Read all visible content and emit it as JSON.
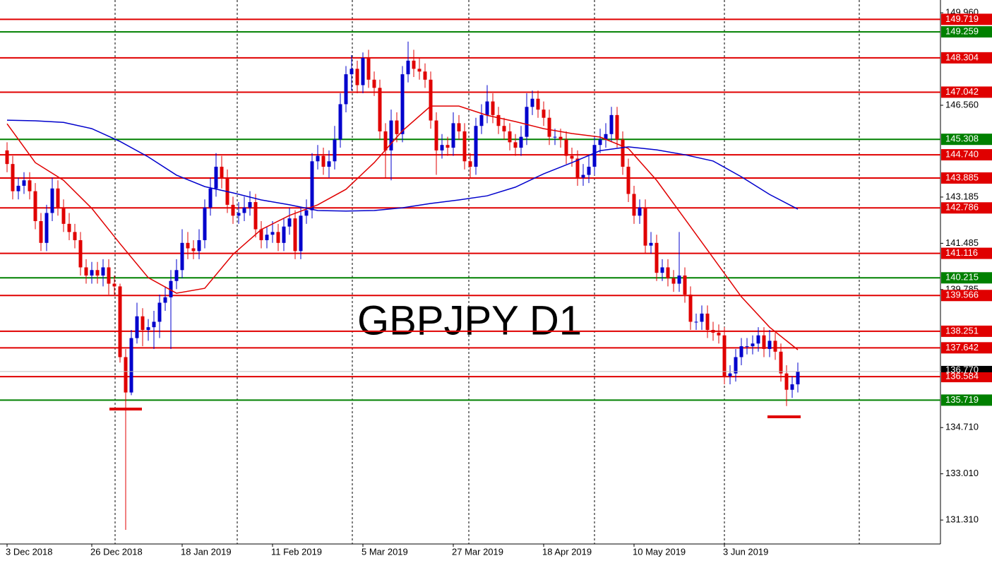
{
  "chart_data": {
    "type": "candlestick",
    "title": "GBPJPY D1",
    "up_color": "#0000cc",
    "down_color": "#e00000",
    "ylim": [
      130.43,
      150.43
    ],
    "yticks": [
      {
        "value": 149.96,
        "label": "149.960"
      },
      {
        "value": 146.56,
        "label": "146.560"
      },
      143.185,
      141.485,
      139.785,
      {
        "value": 134.71,
        "label": "134.710"
      },
      {
        "value": 133.01,
        "label": "133.010"
      },
      {
        "value": 131.31,
        "label": "131.310"
      }
    ],
    "current_price": {
      "value": 136.77,
      "label": "136.770"
    },
    "levels": [
      {
        "value": 149.719,
        "color": "#e00000"
      },
      {
        "value": 149.259,
        "color": "#008000"
      },
      {
        "value": 148.304,
        "color": "#e00000"
      },
      {
        "value": 147.042,
        "color": "#e00000"
      },
      {
        "value": 145.308,
        "color": "#008000"
      },
      {
        "value": 144.74,
        "label": "144.740",
        "color": "#e00000"
      },
      {
        "value": 143.885,
        "color": "#e00000"
      },
      {
        "value": 142.786,
        "color": "#e00000"
      },
      {
        "value": 141.116,
        "color": "#e00000"
      },
      {
        "value": 140.215,
        "color": "#008000"
      },
      {
        "value": 139.566,
        "color": "#e00000"
      },
      {
        "value": 138.251,
        "color": "#e00000"
      },
      {
        "value": 137.642,
        "color": "#e00000"
      },
      {
        "value": 136.584,
        "color": "#e00000"
      },
      {
        "value": 135.719,
        "color": "#008000"
      }
    ],
    "categories": [
      "3 Dec 2018",
      null,
      null,
      null,
      null,
      null,
      null,
      null,
      null,
      null,
      null,
      null,
      null,
      null,
      null,
      "26 Dec 2018",
      null,
      null,
      null,
      null,
      null,
      null,
      null,
      null,
      null,
      null,
      null,
      null,
      null,
      null,
      null,
      "18 Jan 2019",
      null,
      null,
      null,
      null,
      null,
      null,
      null,
      null,
      null,
      null,
      null,
      null,
      null,
      null,
      null,
      "11 Feb 2019",
      null,
      null,
      null,
      null,
      null,
      null,
      null,
      null,
      null,
      null,
      null,
      null,
      null,
      null,
      null,
      "5 Mar 2019",
      null,
      null,
      null,
      null,
      null,
      null,
      null,
      null,
      null,
      null,
      null,
      null,
      null,
      null,
      null,
      "27 Mar 2019",
      null,
      null,
      null,
      null,
      null,
      null,
      null,
      null,
      null,
      null,
      null,
      null,
      null,
      null,
      null,
      "18 Apr 2019",
      null,
      null,
      null,
      null,
      null,
      null,
      null,
      null,
      null,
      null,
      null,
      null,
      null,
      null,
      null,
      "10 May 2019",
      null,
      null,
      null,
      null,
      null,
      null,
      null,
      null,
      null,
      null,
      null,
      null,
      null,
      null,
      null,
      "3 Jun 2019",
      null,
      null,
      null,
      null,
      null,
      null,
      null,
      null,
      null,
      null,
      null,
      null,
      null
    ],
    "ohlc": [
      [
        144.9,
        145.2,
        144.1,
        144.4
      ],
      [
        144.4,
        144.7,
        143.1,
        143.4
      ],
      [
        143.4,
        143.9,
        143.1,
        143.6
      ],
      [
        143.6,
        144.1,
        143.3,
        143.8
      ],
      [
        143.8,
        144.1,
        143.1,
        143.4
      ],
      [
        143.4,
        143.7,
        142.0,
        142.3
      ],
      [
        142.3,
        142.6,
        141.2,
        141.5
      ],
      [
        141.5,
        142.9,
        141.2,
        142.6
      ],
      [
        142.6,
        143.9,
        142.3,
        143.5
      ],
      [
        143.5,
        143.8,
        142.5,
        142.8
      ],
      [
        142.8,
        143.1,
        141.9,
        142.2
      ],
      [
        142.2,
        142.6,
        141.6,
        141.9
      ],
      [
        141.9,
        142.2,
        141.3,
        141.6
      ],
      [
        141.6,
        141.9,
        140.3,
        140.6
      ],
      [
        140.6,
        140.9,
        140.0,
        140.3
      ],
      [
        140.3,
        140.8,
        140.0,
        140.5
      ],
      [
        140.5,
        140.8,
        140.0,
        140.3
      ],
      [
        140.3,
        140.9,
        139.9,
        140.6
      ],
      [
        140.6,
        140.9,
        139.6,
        140.0
      ],
      [
        140.0,
        140.3,
        139.6,
        139.9
      ],
      [
        139.9,
        140.0,
        137.1,
        137.3
      ],
      [
        137.3,
        137.6,
        130.95,
        136.0
      ],
      [
        136.0,
        138.3,
        135.9,
        138.0
      ],
      [
        138.0,
        139.3,
        137.8,
        138.8
      ],
      [
        138.8,
        139.1,
        137.7,
        138.3
      ],
      [
        138.3,
        138.7,
        137.9,
        138.4
      ],
      [
        138.4,
        139.0,
        137.6,
        138.6
      ],
      [
        138.6,
        139.6,
        138.0,
        139.3
      ],
      [
        139.3,
        139.9,
        139.0,
        139.5
      ],
      [
        139.5,
        140.5,
        137.6,
        140.1
      ],
      [
        140.1,
        140.9,
        139.8,
        140.5
      ],
      [
        140.5,
        142.0,
        140.2,
        141.5
      ],
      [
        141.5,
        141.9,
        140.9,
        141.3
      ],
      [
        141.3,
        141.6,
        140.9,
        141.2
      ],
      [
        141.2,
        142.0,
        140.9,
        141.6
      ],
      [
        141.6,
        143.1,
        141.3,
        142.8
      ],
      [
        142.8,
        143.9,
        142.5,
        143.5
      ],
      [
        143.5,
        144.8,
        143.2,
        144.3
      ],
      [
        144.3,
        144.7,
        143.5,
        143.9
      ],
      [
        143.9,
        144.2,
        142.6,
        142.9
      ],
      [
        142.9,
        143.2,
        142.2,
        142.5
      ],
      [
        142.5,
        143.0,
        142.2,
        142.6
      ],
      [
        142.6,
        143.2,
        142.3,
        142.8
      ],
      [
        142.8,
        143.4,
        142.5,
        143.0
      ],
      [
        143.0,
        143.3,
        141.7,
        142.0
      ],
      [
        142.0,
        142.3,
        141.3,
        141.6
      ],
      [
        141.6,
        142.1,
        141.3,
        141.8
      ],
      [
        141.8,
        142.3,
        141.5,
        141.9
      ],
      [
        141.9,
        142.2,
        141.2,
        141.5
      ],
      [
        141.5,
        142.4,
        141.2,
        142.1
      ],
      [
        142.1,
        142.8,
        141.8,
        142.4
      ],
      [
        142.4,
        142.7,
        140.9,
        141.2
      ],
      [
        141.2,
        142.8,
        140.9,
        142.5
      ],
      [
        142.5,
        143.1,
        142.2,
        142.7
      ],
      [
        142.7,
        144.8,
        142.4,
        144.5
      ],
      [
        144.5,
        145.1,
        144.2,
        144.7
      ],
      [
        144.7,
        145.0,
        144.0,
        144.3
      ],
      [
        144.3,
        144.9,
        143.9,
        144.5
      ],
      [
        144.5,
        145.8,
        144.2,
        145.3
      ],
      [
        145.3,
        147.0,
        145.0,
        146.6
      ],
      [
        146.6,
        148.0,
        146.3,
        147.7
      ],
      [
        147.7,
        148.4,
        147.1,
        147.9
      ],
      [
        147.9,
        148.2,
        147.0,
        147.3
      ],
      [
        147.3,
        148.5,
        147.0,
        148.3
      ],
      [
        148.3,
        148.6,
        147.2,
        147.5
      ],
      [
        147.5,
        147.8,
        146.9,
        147.2
      ],
      [
        147.2,
        147.5,
        145.3,
        145.6
      ],
      [
        145.6,
        145.9,
        143.9,
        144.9
      ],
      [
        144.9,
        146.4,
        143.8,
        146.0
      ],
      [
        146.0,
        146.3,
        145.2,
        145.5
      ],
      [
        145.5,
        148.0,
        145.2,
        147.7
      ],
      [
        147.7,
        148.9,
        147.4,
        148.2
      ],
      [
        148.2,
        148.6,
        147.6,
        147.9
      ],
      [
        147.9,
        148.3,
        147.5,
        147.8
      ],
      [
        147.8,
        148.1,
        147.2,
        147.5
      ],
      [
        147.5,
        147.8,
        145.7,
        146.0
      ],
      [
        146.0,
        146.3,
        144.0,
        144.9
      ],
      [
        144.9,
        145.5,
        144.6,
        145.1
      ],
      [
        145.1,
        145.4,
        144.7,
        145.0
      ],
      [
        145.0,
        146.3,
        144.7,
        145.9
      ],
      [
        145.9,
        146.2,
        145.3,
        145.6
      ],
      [
        145.6,
        145.9,
        144.2,
        144.5
      ],
      [
        144.5,
        144.8,
        143.9,
        144.3
      ],
      [
        144.3,
        146.1,
        144.0,
        145.8
      ],
      [
        145.8,
        146.6,
        145.5,
        146.2
      ],
      [
        146.2,
        147.3,
        145.9,
        146.7
      ],
      [
        146.7,
        147.0,
        145.9,
        146.2
      ],
      [
        146.2,
        146.5,
        145.5,
        145.8
      ],
      [
        145.8,
        146.1,
        145.3,
        145.6
      ],
      [
        145.6,
        145.9,
        144.9,
        145.2
      ],
      [
        145.2,
        145.5,
        144.7,
        145.0
      ],
      [
        145.0,
        145.8,
        144.7,
        145.4
      ],
      [
        145.4,
        147.0,
        145.1,
        146.5
      ],
      [
        146.5,
        147.1,
        146.2,
        146.8
      ],
      [
        146.8,
        147.1,
        146.1,
        146.4
      ],
      [
        146.4,
        146.7,
        145.8,
        146.1
      ],
      [
        146.1,
        146.4,
        145.1,
        145.4
      ],
      [
        145.4,
        145.7,
        145.1,
        145.4
      ],
      [
        145.4,
        145.7,
        145.0,
        145.3
      ],
      [
        145.3,
        145.6,
        144.4,
        144.7
      ],
      [
        144.7,
        145.0,
        144.3,
        144.6
      ],
      [
        144.6,
        144.9,
        143.6,
        143.9
      ],
      [
        143.9,
        144.4,
        143.6,
        144.0
      ],
      [
        144.0,
        144.7,
        143.7,
        144.3
      ],
      [
        144.3,
        145.4,
        144.0,
        145.1
      ],
      [
        145.1,
        145.7,
        144.8,
        145.3
      ],
      [
        145.3,
        145.9,
        145.0,
        145.5
      ],
      [
        145.5,
        146.5,
        145.2,
        146.2
      ],
      [
        146.2,
        146.5,
        145.0,
        145.3
      ],
      [
        145.3,
        145.6,
        144.0,
        144.3
      ],
      [
        144.3,
        144.6,
        143.0,
        143.3
      ],
      [
        143.3,
        143.6,
        142.2,
        142.5
      ],
      [
        142.5,
        143.1,
        142.2,
        142.8
      ],
      [
        142.8,
        143.1,
        141.1,
        141.4
      ],
      [
        141.4,
        141.9,
        141.1,
        141.5
      ],
      [
        141.5,
        141.8,
        140.1,
        140.4
      ],
      [
        140.4,
        140.9,
        140.1,
        140.6
      ],
      [
        140.6,
        140.9,
        139.9,
        140.2
      ],
      [
        140.2,
        140.5,
        139.7,
        140.0
      ],
      [
        140.0,
        141.9,
        139.7,
        140.3
      ],
      [
        140.3,
        140.6,
        139.3,
        139.6
      ],
      [
        139.6,
        139.9,
        138.3,
        138.6
      ],
      [
        138.6,
        138.9,
        138.3,
        138.6
      ],
      [
        138.6,
        139.2,
        138.3,
        138.9
      ],
      [
        138.9,
        139.2,
        138.0,
        138.3
      ],
      [
        138.3,
        138.6,
        137.9,
        138.2
      ],
      [
        138.2,
        138.5,
        137.8,
        138.1
      ],
      [
        138.1,
        138.4,
        136.3,
        136.6
      ],
      [
        136.6,
        137.0,
        136.3,
        136.7
      ],
      [
        136.7,
        137.6,
        136.4,
        137.3
      ],
      [
        137.3,
        138.0,
        137.0,
        137.7
      ],
      [
        137.7,
        138.0,
        137.4,
        137.7
      ],
      [
        137.7,
        138.1,
        137.4,
        137.8
      ],
      [
        137.8,
        138.4,
        137.5,
        138.1
      ],
      [
        138.1,
        138.4,
        137.3,
        137.6
      ],
      [
        137.6,
        138.3,
        137.3,
        137.9
      ],
      [
        137.9,
        138.2,
        137.2,
        137.5
      ],
      [
        137.5,
        137.8,
        136.4,
        136.7
      ],
      [
        136.7,
        137.0,
        135.5,
        136.1
      ],
      [
        136.1,
        136.6,
        135.8,
        136.3
      ],
      [
        136.3,
        137.1,
        136.0,
        136.77
      ]
    ],
    "ma_index": [
      0,
      5,
      10,
      15,
      20,
      25,
      30,
      35,
      40,
      45,
      50,
      55,
      60,
      65,
      70,
      75,
      80,
      85,
      90,
      95,
      100,
      105,
      110,
      115,
      120,
      125,
      130,
      135,
      140
    ],
    "moving_averages": [
      {
        "color": "#e00000",
        "values": [
          145.88,
          144.45,
          143.8,
          142.77,
          141.47,
          140.22,
          139.65,
          139.83,
          141.08,
          141.99,
          142.51,
          142.9,
          143.47,
          144.45,
          145.62,
          146.53,
          146.53,
          146.19,
          145.96,
          145.7,
          145.52,
          145.39,
          144.97,
          143.8,
          142.38,
          140.95,
          139.52,
          138.4,
          137.57
        ]
      },
      {
        "color": "#0000cc",
        "values": [
          146.01,
          145.99,
          145.93,
          145.7,
          145.23,
          144.66,
          143.99,
          143.57,
          143.34,
          143.08,
          142.9,
          142.69,
          142.67,
          142.69,
          142.79,
          142.95,
          143.08,
          143.23,
          143.55,
          144.04,
          144.45,
          144.89,
          145.03,
          144.92,
          144.74,
          144.51,
          143.93,
          143.28,
          142.74
        ]
      }
    ]
  }
}
